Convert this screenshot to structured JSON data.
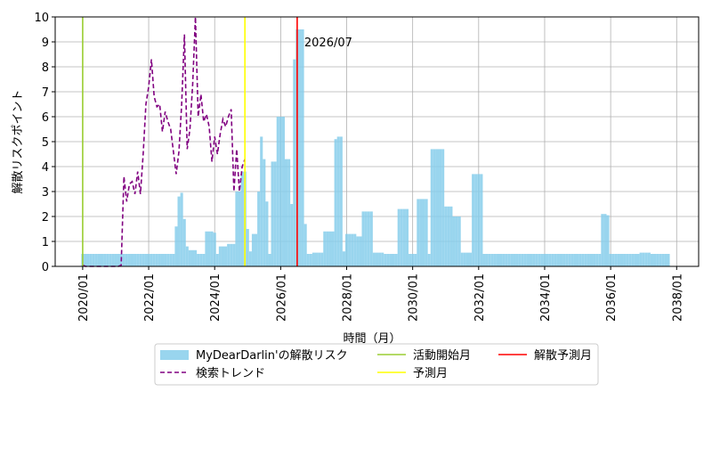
{
  "chart_data": {
    "type": "bar",
    "xlabel": "時間（月）",
    "ylabel": "解散リスクポイント",
    "xlim": [
      "2019/03",
      "2038/09"
    ],
    "xticks": [
      "2020/01",
      "2022/01",
      "2024/01",
      "2026/01",
      "2028/01",
      "2030/01",
      "2032/01",
      "2034/01",
      "2036/01",
      "2038/01"
    ],
    "ylim": [
      0,
      10
    ],
    "yticks": [
      0,
      1,
      2,
      3,
      4,
      5,
      6,
      7,
      8,
      9,
      10
    ],
    "grid": true,
    "legend": "bottom",
    "series": [
      {
        "name": "MyDearDarlin'の解散リスク",
        "type": "bar",
        "color": "skyblue",
        "x": [
          "2020/01",
          "2020/02",
          "2020/03",
          "2020/04",
          "2020/05",
          "2020/06",
          "2020/07",
          "2020/08",
          "2020/09",
          "2020/10",
          "2020/11",
          "2020/12",
          "2021/01",
          "2021/02",
          "2021/03",
          "2021/04",
          "2021/05",
          "2021/06",
          "2021/07",
          "2021/08",
          "2021/09",
          "2021/10",
          "2021/11",
          "2021/12",
          "2022/01",
          "2022/02",
          "2022/03",
          "2022/04",
          "2022/05",
          "2022/06",
          "2022/07",
          "2022/08",
          "2022/09",
          "2022/10",
          "2022/11",
          "2022/12",
          "2023/01",
          "2023/02",
          "2023/03",
          "2023/04",
          "2023/05",
          "2023/06",
          "2023/07",
          "2023/08",
          "2023/09",
          "2023/10",
          "2023/11",
          "2023/12",
          "2024/01",
          "2024/02",
          "2024/03",
          "2024/04",
          "2024/05",
          "2024/06",
          "2024/07",
          "2024/08",
          "2024/09",
          "2024/10",
          "2024/11",
          "2024/12",
          "2025/01",
          "2025/02",
          "2025/03",
          "2025/04",
          "2025/05",
          "2025/06",
          "2025/07",
          "2025/08",
          "2025/09",
          "2025/10",
          "2025/11",
          "2025/12",
          "2026/01",
          "2026/02",
          "2026/03",
          "2026/04",
          "2026/05",
          "2026/06",
          "2026/07",
          "2026/08",
          "2026/09",
          "2026/10",
          "2026/11",
          "2026/12",
          "2027/01",
          "2027/02",
          "2027/03",
          "2027/04",
          "2027/05",
          "2027/06",
          "2027/07",
          "2027/08",
          "2027/09",
          "2027/10",
          "2027/11",
          "2027/12",
          "2028/01",
          "2028/02",
          "2028/03",
          "2028/04",
          "2028/05",
          "2028/06",
          "2028/07",
          "2028/08",
          "2028/09",
          "2028/10",
          "2028/11",
          "2028/12",
          "2029/01",
          "2029/02",
          "2029/03",
          "2029/04",
          "2029/05",
          "2029/06",
          "2029/07",
          "2029/08",
          "2029/09",
          "2029/10",
          "2029/11",
          "2029/12",
          "2030/01",
          "2030/02",
          "2030/03",
          "2030/04",
          "2030/05",
          "2030/06",
          "2030/07",
          "2030/08",
          "2030/09",
          "2030/10",
          "2030/11",
          "2030/12",
          "2031/01",
          "2031/02",
          "2031/03",
          "2031/04",
          "2031/05",
          "2031/06",
          "2031/07",
          "2031/08",
          "2031/09",
          "2031/10",
          "2031/11",
          "2031/12",
          "2032/01",
          "2032/02",
          "2032/03",
          "2032/04",
          "2032/05",
          "2032/06",
          "2032/07",
          "2032/08",
          "2032/09",
          "2032/10",
          "2032/11",
          "2032/12",
          "2033/01",
          "2033/02",
          "2033/03",
          "2033/04",
          "2033/05",
          "2033/06",
          "2033/07",
          "2033/08",
          "2033/09",
          "2033/10",
          "2033/11",
          "2033/12",
          "2034/01",
          "2034/02",
          "2034/03",
          "2034/04",
          "2034/05",
          "2034/06",
          "2034/07",
          "2034/08",
          "2034/09",
          "2034/10",
          "2034/11",
          "2034/12",
          "2035/01",
          "2035/02",
          "2035/03",
          "2035/04",
          "2035/05",
          "2035/06",
          "2035/07",
          "2035/08",
          "2035/09",
          "2035/10",
          "2035/11",
          "2035/12",
          "2036/01",
          "2036/02",
          "2036/03",
          "2036/04",
          "2036/05",
          "2036/06",
          "2036/07",
          "2036/08",
          "2036/09",
          "2036/10",
          "2036/11",
          "2036/12",
          "2037/01",
          "2037/02",
          "2037/03",
          "2037/04",
          "2037/05",
          "2037/06",
          "2037/07",
          "2037/08",
          "2037/09",
          "2037/10"
        ],
        "values": [
          0.5,
          0.5,
          0.5,
          0.5,
          0.5,
          0.5,
          0.5,
          0.5,
          0.5,
          0.5,
          0.5,
          0.5,
          0.5,
          0.5,
          0.5,
          0.5,
          0.5,
          0.5,
          0.5,
          0.5,
          0.5,
          0.5,
          0.5,
          0.5,
          0.5,
          0.5,
          0.5,
          0.5,
          0.5,
          0.5,
          0.5,
          0.5,
          0.5,
          0.5,
          1.6,
          2.8,
          2.95,
          1.9,
          0.8,
          0.65,
          0.65,
          0.65,
          0.5,
          0.5,
          0.5,
          1.4,
          1.4,
          1.4,
          1.35,
          0.5,
          0.8,
          0.8,
          0.8,
          0.9,
          0.9,
          0.9,
          3.0,
          3.0,
          3.8,
          3.8,
          1.5,
          0.6,
          1.3,
          1.3,
          3.0,
          5.2,
          4.3,
          2.6,
          0.5,
          4.2,
          4.2,
          6.0,
          6.0,
          6.0,
          4.3,
          4.3,
          2.5,
          8.3,
          9.5,
          9.5,
          9.5,
          1.7,
          0.5,
          0.5,
          0.55,
          0.55,
          0.55,
          0.55,
          1.4,
          1.4,
          1.4,
          1.4,
          5.1,
          5.2,
          5.2,
          0.6,
          1.3,
          1.3,
          1.3,
          1.3,
          1.2,
          1.2,
          2.2,
          2.2,
          2.2,
          2.2,
          0.55,
          0.55,
          0.55,
          0.55,
          0.5,
          0.5,
          0.5,
          0.5,
          0.5,
          2.3,
          2.3,
          2.3,
          2.3,
          0.5,
          0.5,
          0.5,
          2.7,
          2.7,
          2.7,
          2.7,
          0.5,
          4.7,
          4.7,
          4.7,
          4.7,
          4.7,
          2.4,
          2.4,
          2.4,
          2.0,
          2.0,
          2.0,
          0.55,
          0.55,
          0.55,
          0.55,
          3.7,
          3.7,
          3.7,
          3.7,
          0.5,
          0.5,
          0.5,
          0.5,
          0.5,
          0.5,
          0.5,
          0.5,
          0.5,
          0.5,
          0.5,
          0.5,
          0.5,
          0.5,
          0.5,
          0.5,
          0.5,
          0.5,
          0.5,
          0.5,
          0.5,
          0.5,
          0.5,
          0.5,
          0.5,
          0.5,
          0.5,
          0.5,
          0.5,
          0.5,
          0.5,
          0.5,
          0.5,
          0.5,
          0.5,
          0.5,
          0.5,
          0.5,
          0.5,
          0.5,
          0.5,
          0.5,
          0.5,
          2.1,
          2.1,
          2.05,
          0.5,
          0.5,
          0.5,
          0.5,
          0.5,
          0.5,
          0.5,
          0.5,
          0.5,
          0.5,
          0.5,
          0.55,
          0.55,
          0.55,
          0.55,
          0.5,
          0.5,
          0.5,
          0.5,
          0.5,
          0.5,
          0.5
        ]
      },
      {
        "name": "検索トレンド",
        "type": "line",
        "color": "purple",
        "dash": true,
        "x": [
          "2020/01",
          "2020/02",
          "2020/03",
          "2020/04",
          "2020/05",
          "2020/06",
          "2020/07",
          "2020/08",
          "2020/09",
          "2020/10",
          "2020/11",
          "2020/12",
          "2021/01",
          "2021/02",
          "2021/03",
          "2021/04",
          "2021/05",
          "2021/06",
          "2021/07",
          "2021/08",
          "2021/09",
          "2021/10",
          "2021/11",
          "2021/12",
          "2022/01",
          "2022/02",
          "2022/03",
          "2022/04",
          "2022/05",
          "2022/06",
          "2022/07",
          "2022/08",
          "2022/09",
          "2022/10",
          "2022/11",
          "2022/12",
          "2023/01",
          "2023/02",
          "2023/03",
          "2023/04",
          "2023/05",
          "2023/06",
          "2023/07",
          "2023/08",
          "2023/09",
          "2023/10",
          "2023/11",
          "2023/12",
          "2024/01",
          "2024/02",
          "2024/03",
          "2024/04",
          "2024/05",
          "2024/06",
          "2024/07",
          "2024/08",
          "2024/09",
          "2024/10",
          "2024/11",
          "2024/12"
        ],
        "values": [
          0.05,
          0,
          0,
          0,
          0,
          0,
          0,
          0,
          0,
          0,
          0,
          0,
          0,
          0,
          0.05,
          3.6,
          2.6,
          3.3,
          3.4,
          2.9,
          3.8,
          2.9,
          4.5,
          6.5,
          7.2,
          8.3,
          6.8,
          6.4,
          6.5,
          5.4,
          6.2,
          5.8,
          5.5,
          4.6,
          3.7,
          4.6,
          6.5,
          9.3,
          4.7,
          5.5,
          7.3,
          10.0,
          6.0,
          6.9,
          5.8,
          6.1,
          5.6,
          4.2,
          5.2,
          4.5,
          5.3,
          5.9,
          5.6,
          6.0,
          6.3,
          3.0,
          4.7,
          3.0,
          4.0,
          4.3
        ]
      }
    ],
    "vlines": [
      {
        "name": "活動開始月",
        "color": "yellowgreen",
        "x": "2020/01"
      },
      {
        "name": "予測月",
        "color": "yellow",
        "x": "2024/12"
      },
      {
        "name": "解散予測月",
        "color": "red",
        "x": "2026/07"
      }
    ],
    "annotations": [
      {
        "text": "2026/07",
        "color": "red"
      }
    ]
  }
}
